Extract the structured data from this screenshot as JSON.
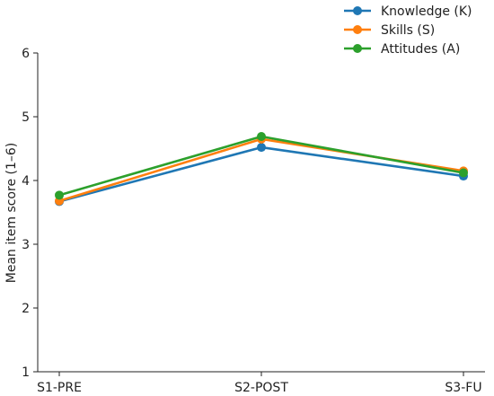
{
  "chart_data": {
    "type": "line",
    "title": "",
    "xlabel": "",
    "ylabel": "Mean item score (1–6)",
    "categories": [
      "S1-PRE",
      "S2-POST",
      "S3-FU"
    ],
    "ylim": [
      1,
      6
    ],
    "yticks": [
      1,
      2,
      3,
      4,
      5,
      6
    ],
    "grid": false,
    "legend_position": "top-right",
    "series": [
      {
        "name": "Knowledge (K)",
        "values": [
          3.67,
          4.52,
          4.07
        ],
        "color": "#1f77b4"
      },
      {
        "name": "Skills (S)",
        "values": [
          3.68,
          4.65,
          4.15
        ],
        "color": "#ff7f0e"
      },
      {
        "name": "Attitudes (A)",
        "values": [
          3.77,
          4.69,
          4.12
        ],
        "color": "#2ca02c"
      }
    ]
  }
}
